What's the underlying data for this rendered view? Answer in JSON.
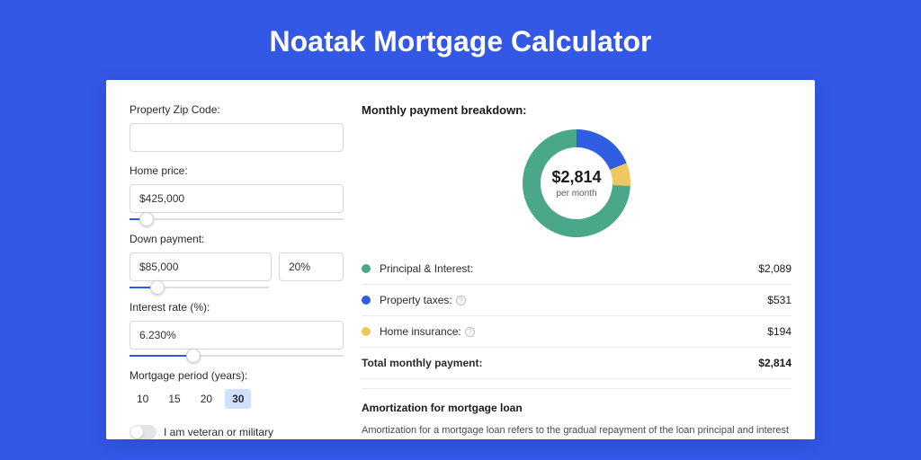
{
  "page": {
    "title": "Noatak Mortgage Calculator",
    "background_color": "#3458e6",
    "card_background": "#ffffff"
  },
  "form": {
    "zip": {
      "label": "Property Zip Code:",
      "value": ""
    },
    "home_price": {
      "label": "Home price:",
      "value": "$425,000",
      "slider_percent": 8
    },
    "down_payment": {
      "label": "Down payment:",
      "amount": "$85,000",
      "percent": "20%",
      "slider_percent": 20
    },
    "interest_rate": {
      "label": "Interest rate (%):",
      "value": "6.230%",
      "slider_percent": 30
    },
    "mortgage_period": {
      "label": "Mortgage period (years):",
      "options": [
        "10",
        "15",
        "20",
        "30"
      ],
      "selected_index": 3
    },
    "veteran": {
      "label": "I am veteran or military",
      "checked": false
    }
  },
  "breakdown": {
    "title": "Monthly payment breakdown:",
    "center_value": "$2,814",
    "center_sub": "per month",
    "donut": {
      "type": "donut",
      "outer_radius": 60,
      "inner_radius": 40,
      "slices": [
        {
          "label": "Principal & Interest",
          "value": 2089,
          "color": "#4aa789",
          "percent": 74.2
        },
        {
          "label": "Property taxes",
          "value": 531,
          "color": "#2f5fe0",
          "percent": 18.9
        },
        {
          "label": "Home insurance",
          "value": 194,
          "color": "#eec75e",
          "percent": 6.9
        }
      ]
    },
    "rows": [
      {
        "dot_color": "#4aa789",
        "label": "Principal & Interest:",
        "amount": "$2,089",
        "info": false
      },
      {
        "dot_color": "#2f5fe0",
        "label": "Property taxes:",
        "amount": "$531",
        "info": true
      },
      {
        "dot_color": "#eec75e",
        "label": "Home insurance:",
        "amount": "$194",
        "info": true
      }
    ],
    "total": {
      "label": "Total monthly payment:",
      "amount": "$2,814"
    }
  },
  "amortization": {
    "title": "Amortization for mortgage loan",
    "text": "Amortization for a mortgage loan refers to the gradual repayment of the loan principal and interest over a specified"
  }
}
